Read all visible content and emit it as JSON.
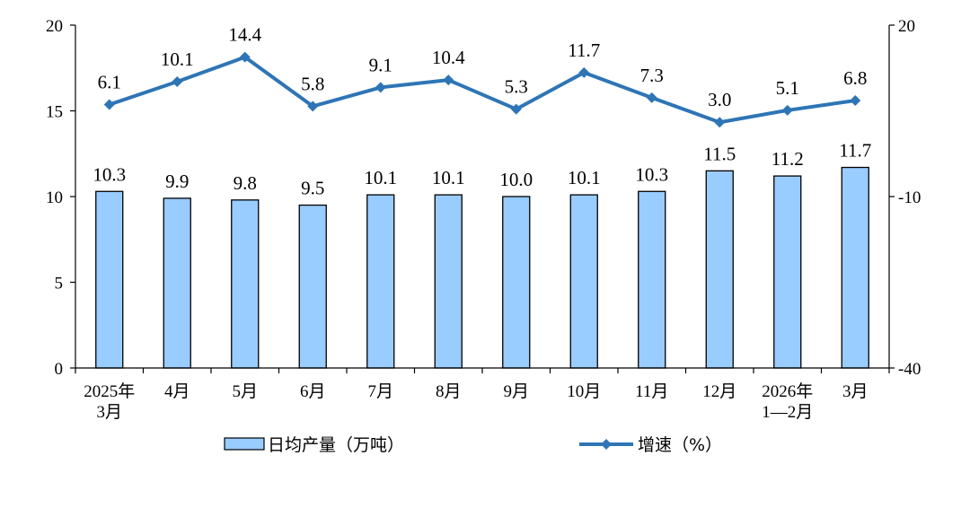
{
  "chart_data": {
    "type": "bar",
    "categories": [
      [
        "2025年",
        "3月"
      ],
      [
        "4月"
      ],
      [
        "5月"
      ],
      [
        "6月"
      ],
      [
        "7月"
      ],
      [
        "8月"
      ],
      [
        "9月"
      ],
      [
        "10月"
      ],
      [
        "11月"
      ],
      [
        "12月"
      ],
      [
        "2026年",
        "1—2月"
      ],
      [
        "3月"
      ]
    ],
    "series": [
      {
        "name": "日均产量（万吨）",
        "type": "bar",
        "axis": "left",
        "values": [
          10.3,
          9.9,
          9.8,
          9.5,
          10.1,
          10.1,
          10.0,
          10.1,
          10.3,
          11.5,
          11.2,
          11.7
        ],
        "labels": [
          "10.3",
          "9.9",
          "9.8",
          "9.5",
          "10.1",
          "10.1",
          "10.0",
          "10.1",
          "10.3",
          "11.5",
          "11.2",
          "11.7"
        ],
        "color": "#99CCFF",
        "edge_color": "#000000"
      },
      {
        "name": "增速（%）",
        "type": "line",
        "axis": "right",
        "values": [
          6.1,
          10.1,
          14.4,
          5.8,
          9.1,
          10.4,
          5.3,
          11.7,
          7.3,
          3.0,
          5.1,
          6.8
        ],
        "labels": [
          "6.1",
          "10.1",
          "14.4",
          "5.8",
          "9.1",
          "10.4",
          "5.3",
          "11.7",
          "7.3",
          "3.0",
          "5.1",
          "6.8"
        ],
        "color": "#2E75B6",
        "marker": "diamond"
      }
    ],
    "y_left": {
      "min": 0,
      "max": 20,
      "ticks": [
        "0",
        "5",
        "10",
        "15",
        "20"
      ]
    },
    "y_right": {
      "min": -40,
      "max": 20,
      "ticks": [
        "-40",
        "-10",
        "20"
      ]
    },
    "grid": false,
    "legend_position": "bottom"
  }
}
